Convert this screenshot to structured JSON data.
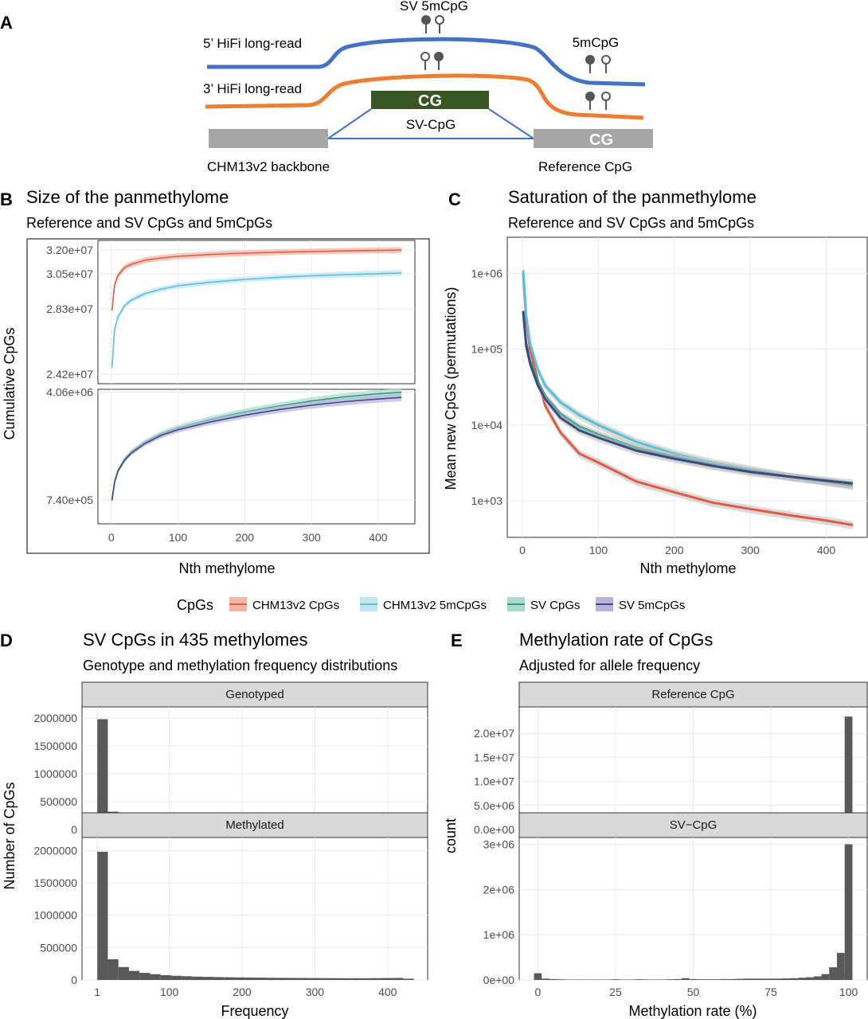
{
  "panel_labels": [
    "A",
    "B",
    "C",
    "D",
    "E"
  ],
  "diagram": {
    "five_prime_label": "5’ HiFi long-read",
    "three_prime_label": "3’ HiFi long-read",
    "sv_5mcpg_label": "SV 5mCpG",
    "five_mcpg_label": "5mCpG",
    "cg_label": "CG",
    "sv_cpg_label": "SV-CpG",
    "ref_cg_label": "CG",
    "backbone_label": "CHM13v2 backbone",
    "reference_cpg_label": "Reference CpG",
    "colors": {
      "five_prime": "#4472c4",
      "three_prime": "#ed7d31",
      "sv_box": "#375623",
      "ref_box": "#a6a6a6"
    }
  },
  "legend": {
    "title": "CpGs",
    "items": [
      {
        "label": "CHM13v2 CpGs",
        "color": "#e05a44",
        "fill": "#f3b3a5"
      },
      {
        "label": "CHM13v2 5mCpGs",
        "color": "#5bbfd9",
        "fill": "#bfe6f1"
      },
      {
        "label": "SV CpGs",
        "color": "#2e9e83",
        "fill": "#a9dccd"
      },
      {
        "label": "SV 5mCpGs",
        "color": "#3d4a7f",
        "fill": "#b7b4dc"
      }
    ]
  },
  "chart_data": [
    {
      "id": "B",
      "type": "line",
      "title": "Size of the panmethylome",
      "subtitle": "Reference and SV CpGs and 5mCpGs",
      "xlabel": "Nth methylome",
      "ylabel": "Cumulative CpGs",
      "xlim": [
        -20,
        455
      ],
      "x_ticks": [
        "0",
        "100",
        "200",
        "300",
        "400"
      ],
      "facets": [
        {
          "ylim": [
            23600000,
            32600000
          ],
          "y_ticks": [
            "3.20e+07",
            "3.05e+07",
            "2.83e+07",
            "2.42e+07"
          ],
          "y_tick_values": [
            32000000,
            30500000,
            28300000,
            24200000
          ],
          "series": [
            {
              "name": "CHM13v2 CpGs",
              "x": [
                1,
                5,
                10,
                20,
                30,
                50,
                75,
                100,
                150,
                200,
                250,
                300,
                350,
                400,
                435
              ],
              "y": [
                28200000,
                29800000,
                30400000,
                30900000,
                31100000,
                31350000,
                31500000,
                31600000,
                31720000,
                31800000,
                31860000,
                31900000,
                31940000,
                31970000,
                32000000
              ]
            },
            {
              "name": "CHM13v2 5mCpGs",
              "x": [
                1,
                5,
                10,
                20,
                30,
                50,
                75,
                100,
                150,
                200,
                250,
                300,
                350,
                400,
                435
              ],
              "y": [
                24600000,
                27000000,
                27800000,
                28500000,
                28850000,
                29250000,
                29550000,
                29750000,
                29980000,
                30150000,
                30280000,
                30380000,
                30450000,
                30510000,
                30550000
              ]
            }
          ]
        },
        {
          "ylim": [
            0,
            4150000
          ],
          "y_ticks": [
            "4.06e+06",
            "7.40e+05"
          ],
          "y_tick_values": [
            4060000,
            740000
          ],
          "series": [
            {
              "name": "SV CpGs",
              "x": [
                1,
                5,
                10,
                20,
                30,
                50,
                75,
                100,
                150,
                200,
                250,
                300,
                350,
                400,
                435
              ],
              "y": [
                740000,
                1300000,
                1650000,
                2000000,
                2220000,
                2520000,
                2780000,
                2960000,
                3230000,
                3450000,
                3630000,
                3790000,
                3920000,
                4010000,
                4060000
              ]
            },
            {
              "name": "SV 5mCpGs",
              "x": [
                1,
                5,
                10,
                20,
                30,
                50,
                75,
                100,
                150,
                200,
                250,
                300,
                350,
                400,
                435
              ],
              "y": [
                720000,
                1280000,
                1620000,
                1960000,
                2180000,
                2470000,
                2730000,
                2900000,
                3150000,
                3350000,
                3520000,
                3660000,
                3770000,
                3850000,
                3900000
              ]
            }
          ]
        }
      ]
    },
    {
      "id": "C",
      "type": "line",
      "title": "Saturation of the panmethylome",
      "subtitle": "Reference and SV CpGs and 5mCpGs",
      "xlabel": "Nth methylome",
      "ylabel": "Mean new CpGs (permutations)",
      "xlim": [
        -20,
        455
      ],
      "ylim": [
        330,
        3000000
      ],
      "y_scale": "log",
      "x_ticks": [
        "0",
        "100",
        "200",
        "300",
        "400"
      ],
      "y_ticks": [
        "1e+06",
        "1e+05",
        "1e+04",
        "1e+03"
      ],
      "y_tick_values": [
        1000000,
        100000,
        10000,
        1000
      ],
      "series": [
        {
          "name": "CHM13v2 CpGs",
          "x": [
            1,
            5,
            10,
            20,
            30,
            50,
            75,
            100,
            150,
            200,
            250,
            300,
            350,
            400,
            435
          ],
          "y": [
            1000000,
            250000,
            100000,
            40000,
            18000,
            8000,
            4200,
            3200,
            1800,
            1300,
            950,
            780,
            650,
            550,
            480
          ]
        },
        {
          "name": "CHM13v2 5mCpGs",
          "x": [
            1,
            5,
            10,
            20,
            30,
            50,
            75,
            100,
            150,
            200,
            250,
            300,
            350,
            400,
            435
          ],
          "y": [
            1100000,
            280000,
            120000,
            55000,
            33000,
            20000,
            13500,
            10000,
            6000,
            4200,
            3200,
            2600,
            2100,
            1800,
            1600
          ]
        },
        {
          "name": "SV CpGs",
          "x": [
            1,
            5,
            10,
            20,
            30,
            50,
            75,
            100,
            150,
            200,
            250,
            300,
            350,
            400,
            435
          ],
          "y": [
            300000,
            120000,
            70000,
            38000,
            24000,
            14000,
            9500,
            7500,
            5000,
            3800,
            3000,
            2500,
            2100,
            1800,
            1600
          ]
        },
        {
          "name": "SV 5mCpGs",
          "x": [
            1,
            5,
            10,
            20,
            30,
            50,
            75,
            100,
            150,
            200,
            250,
            300,
            350,
            400,
            435
          ],
          "y": [
            320000,
            110000,
            65000,
            34000,
            22000,
            12500,
            8500,
            6800,
            4600,
            3600,
            2900,
            2400,
            2100,
            1850,
            1700
          ]
        }
      ]
    },
    {
      "id": "D",
      "type": "bar",
      "title": "SV CpGs in 435 methylomes",
      "subtitle": "Genotype and methylation frequency distributions",
      "xlabel": "Frequency",
      "ylabel": "Number of CpGs",
      "xlim": [
        -20,
        455
      ],
      "x_ticks": [
        "1",
        "100",
        "200",
        "300",
        "400"
      ],
      "x_tick_values": [
        1,
        100,
        200,
        300,
        400
      ],
      "bin_width": 14.5,
      "bin_starts": [
        1,
        15.5,
        30,
        44.5,
        59,
        73.5,
        88,
        102.5,
        117,
        131.5,
        146,
        160.5,
        175,
        189.5,
        204,
        218.5,
        233,
        247.5,
        262,
        276.5,
        291,
        305.5,
        320,
        334.5,
        349,
        363.5,
        378,
        392.5,
        407,
        421.5
      ],
      "facets": [
        {
          "strip": "Genotyped",
          "ylim": [
            0,
            2200000
          ],
          "y_ticks": [
            "2000000",
            "1500000",
            "1000000",
            "500000",
            "0"
          ],
          "y_tick_values": [
            2000000,
            1500000,
            1000000,
            500000,
            0
          ],
          "values": [
            1980000,
            320000,
            200000,
            140000,
            110000,
            90000,
            75000,
            65000,
            58000,
            52000,
            48000,
            45000,
            42000,
            40000,
            38000,
            36000,
            35000,
            34000,
            33000,
            32000,
            31000,
            30000,
            30000,
            29000,
            29000,
            30000,
            32000,
            35000,
            38000,
            30000
          ]
        },
        {
          "strip": "Methylated",
          "ylim": [
            0,
            2200000
          ],
          "y_ticks": [
            "2000000",
            "1500000",
            "1000000",
            "500000",
            "0"
          ],
          "y_tick_values": [
            2000000,
            1500000,
            1000000,
            500000,
            0
          ],
          "values": [
            1980000,
            320000,
            200000,
            140000,
            110000,
            90000,
            75000,
            65000,
            58000,
            52000,
            48000,
            45000,
            42000,
            40000,
            38000,
            36000,
            34000,
            33000,
            32000,
            31000,
            30000,
            29000,
            28000,
            27000,
            27000,
            27000,
            28000,
            30000,
            32000,
            20000
          ]
        }
      ]
    },
    {
      "id": "E",
      "type": "bar",
      "title": "Methylation rate of CpGs",
      "subtitle": "Adjusted for allele frequency",
      "xlabel": "Methylation rate (%)",
      "ylabel": "count",
      "xlim": [
        -6,
        106
      ],
      "x_ticks": [
        "0",
        "25",
        "50",
        "75",
        "100"
      ],
      "x_tick_values": [
        0,
        25,
        50,
        75,
        100
      ],
      "bin_width": 2.5,
      "bin_starts": [
        -1.25,
        1.25,
        3.75,
        6.25,
        8.75,
        11.25,
        13.75,
        16.25,
        18.75,
        21.25,
        23.75,
        26.25,
        28.75,
        31.25,
        33.75,
        36.25,
        38.75,
        41.25,
        43.75,
        46.25,
        48.75,
        51.25,
        53.75,
        56.25,
        58.75,
        61.25,
        63.75,
        66.25,
        68.75,
        71.25,
        73.75,
        76.25,
        78.75,
        81.25,
        83.75,
        86.25,
        88.75,
        91.25,
        93.75,
        96.25,
        98.75
      ],
      "facets": [
        {
          "strip": "Reference CpG",
          "ylim": [
            0,
            25500000
          ],
          "y_ticks": [
            "2.0e+07",
            "1.5e+07",
            "1.0e+07",
            "5.0e+06",
            "0.0e+00"
          ],
          "y_tick_values": [
            20000000,
            15000000,
            10000000,
            5000000,
            0
          ],
          "values": [
            2500000,
            400000,
            150000,
            80000,
            60000,
            50000,
            40000,
            35000,
            30000,
            30000,
            30000,
            30000,
            30000,
            30000,
            30000,
            30000,
            30000,
            30000,
            30000,
            35000,
            35000,
            30000,
            30000,
            30000,
            30000,
            30000,
            35000,
            40000,
            50000,
            60000,
            70000,
            80000,
            100000,
            120000,
            150000,
            200000,
            300000,
            500000,
            1000000,
            2000000,
            23500000
          ]
        },
        {
          "strip": "SV−CpG",
          "ylim": [
            0,
            3150000
          ],
          "y_ticks": [
            "3e+06",
            "2e+06",
            "1e+06",
            "0e+00"
          ],
          "y_tick_values": [
            3000000,
            2000000,
            1000000,
            0
          ],
          "values": [
            150000,
            30000,
            20000,
            15000,
            10000,
            10000,
            10000,
            10000,
            10000,
            10000,
            15000,
            10000,
            10000,
            15000,
            12000,
            10000,
            10000,
            15000,
            20000,
            40000,
            20000,
            15000,
            15000,
            15000,
            20000,
            20000,
            25000,
            30000,
            30000,
            30000,
            30000,
            30000,
            35000,
            40000,
            50000,
            60000,
            80000,
            130000,
            280000,
            600000,
            3000000
          ]
        }
      ]
    }
  ]
}
